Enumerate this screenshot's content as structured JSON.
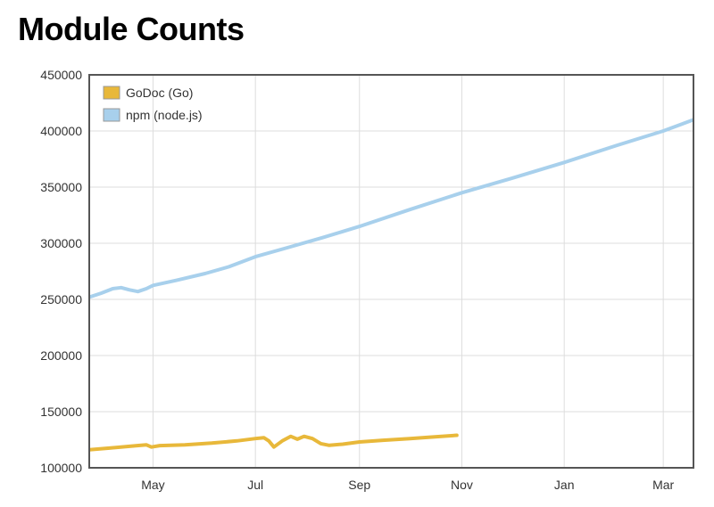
{
  "chart_data": {
    "type": "line",
    "title": "Module Counts",
    "xlabel": "",
    "ylabel": "",
    "x_ticks": [
      "May",
      "Jul",
      "Sep",
      "Nov",
      "Jan",
      "Mar"
    ],
    "y_ticks": [
      100000,
      150000,
      200000,
      250000,
      300000,
      350000,
      400000,
      450000
    ],
    "ylim": [
      100000,
      450000
    ],
    "xlim": [
      "2012-03-24",
      "2013-03-19"
    ],
    "grid": true,
    "legend_position": "top-left",
    "series": [
      {
        "name": "GoDoc (Go)",
        "color": "#e8b83a",
        "points": [
          [
            "2012-03-24",
            116000
          ],
          [
            "2012-04-05",
            117500
          ],
          [
            "2012-04-20",
            119500
          ],
          [
            "2012-04-27",
            120500
          ],
          [
            "2012-04-30",
            118500
          ],
          [
            "2012-05-05",
            119800
          ],
          [
            "2012-05-20",
            120500
          ],
          [
            "2012-06-05",
            122000
          ],
          [
            "2012-06-20",
            124000
          ],
          [
            "2012-07-01",
            126000
          ],
          [
            "2012-07-06",
            126800
          ],
          [
            "2012-07-09",
            124000
          ],
          [
            "2012-07-12",
            118500
          ],
          [
            "2012-07-17",
            124000
          ],
          [
            "2012-07-22",
            128000
          ],
          [
            "2012-07-26",
            125500
          ],
          [
            "2012-07-30",
            128000
          ],
          [
            "2012-08-04",
            126000
          ],
          [
            "2012-08-09",
            121500
          ],
          [
            "2012-08-14",
            120000
          ],
          [
            "2012-08-22",
            121000
          ],
          [
            "2012-09-01",
            123000
          ],
          [
            "2012-09-15",
            124500
          ],
          [
            "2012-10-01",
            126000
          ],
          [
            "2012-10-15",
            127500
          ],
          [
            "2012-10-29",
            129000
          ]
        ]
      },
      {
        "name": "npm (node.js)",
        "color": "#a8d0ec",
        "points": [
          [
            "2012-03-24",
            252000
          ],
          [
            "2012-03-31",
            255500
          ],
          [
            "2012-04-07",
            259500
          ],
          [
            "2012-04-12",
            260500
          ],
          [
            "2012-04-17",
            258500
          ],
          [
            "2012-04-22",
            257000
          ],
          [
            "2012-04-27",
            259500
          ],
          [
            "2012-05-01",
            262500
          ],
          [
            "2012-05-15",
            267000
          ],
          [
            "2012-06-01",
            273000
          ],
          [
            "2012-06-15",
            279000
          ],
          [
            "2012-07-01",
            288000
          ],
          [
            "2012-07-20",
            296000
          ],
          [
            "2012-08-10",
            305000
          ],
          [
            "2012-09-01",
            315000
          ],
          [
            "2012-10-01",
            330000
          ],
          [
            "2012-11-01",
            345000
          ],
          [
            "2012-12-01",
            358000
          ],
          [
            "2013-01-01",
            372000
          ],
          [
            "2013-02-01",
            387000
          ],
          [
            "2013-03-01",
            400000
          ],
          [
            "2013-03-19",
            410000
          ]
        ]
      }
    ]
  }
}
